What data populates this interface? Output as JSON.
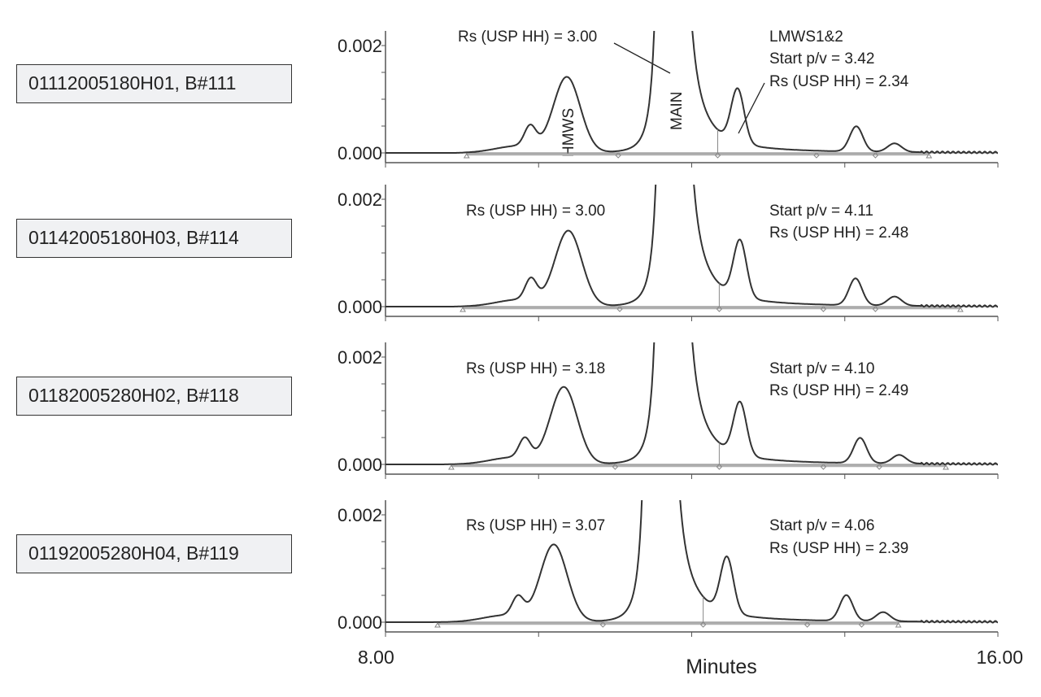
{
  "chart_data": [
    {
      "type": "line",
      "sample": "01112005180H01, B#111",
      "ylim": [
        0,
        0.0023
      ],
      "yticks": [
        "0.002",
        "0.000"
      ],
      "xlim": [
        8,
        16
      ],
      "peaks": [
        {
          "label": "",
          "rt": 9.89,
          "height": 0.00038
        },
        {
          "label": "HMWS",
          "rt": 10.37,
          "height": 0.0014
        },
        {
          "label": "MAIN",
          "rt": 11.76,
          "off_scale": true
        },
        {
          "label": "LMWS1",
          "rt": 12.6,
          "height": 0.001
        },
        {
          "label": "LMWS2",
          "rt": 14.15,
          "height": 0.00047
        },
        {
          "label": "",
          "rt": 14.65,
          "height": 0.00016
        }
      ],
      "markers": {
        "triangles": [
          9.06,
          15.1
        ],
        "diamonds": [
          11.04,
          12.34,
          13.63,
          14.4
        ]
      },
      "annotations": {
        "left": "Rs (USP HH) = 3.00",
        "right": [
          "LMWS1&2",
          "Start p/v = 3.42",
          "Rs (USP HH) = 2.34"
        ],
        "peak_labels": [
          "HMWS",
          "MAIN"
        ]
      }
    },
    {
      "type": "line",
      "sample": "01142005180H03, B#114",
      "ylim": [
        0,
        0.0023
      ],
      "yticks": [
        "0.002",
        "0.000"
      ],
      "xlim": [
        8,
        16
      ],
      "peaks": [
        {
          "label": "",
          "rt": 9.9,
          "height": 0.0004
        },
        {
          "label": "HMWS",
          "rt": 10.39,
          "height": 0.0014
        },
        {
          "label": "MAIN",
          "rt": 11.78,
          "off_scale": true
        },
        {
          "label": "LMWS1",
          "rt": 12.63,
          "height": 0.00105
        },
        {
          "label": "LMWS2",
          "rt": 14.14,
          "height": 0.0005
        },
        {
          "label": "",
          "rt": 14.65,
          "height": 0.00017
        }
      ],
      "markers": {
        "triangles": [
          9.01,
          15.51
        ],
        "diamonds": [
          11.06,
          12.36,
          13.72,
          14.4
        ]
      },
      "annotations": {
        "left": "Rs (USP HH) = 3.00",
        "right": [
          "Start p/v = 4.11",
          "Rs (USP HH) = 2.48"
        ]
      }
    },
    {
      "type": "line",
      "sample": "01182005280H02, B#118",
      "ylim": [
        0,
        0.0023
      ],
      "yticks": [
        "0.002",
        "0.000"
      ],
      "xlim": [
        8,
        16
      ],
      "peaks": [
        {
          "label": "",
          "rt": 9.82,
          "height": 0.00037
        },
        {
          "label": "HMWS",
          "rt": 10.33,
          "height": 0.00143
        },
        {
          "label": "MAIN",
          "rt": 11.76,
          "off_scale": true
        },
        {
          "label": "LMWS1",
          "rt": 12.63,
          "height": 0.00098
        },
        {
          "label": "LMWS2",
          "rt": 14.2,
          "height": 0.00047
        },
        {
          "label": "",
          "rt": 14.71,
          "height": 0.00016
        }
      ],
      "markers": {
        "triangles": [
          8.86,
          15.32
        ],
        "diamonds": [
          11.0,
          12.36,
          13.72,
          14.45
        ]
      },
      "annotations": {
        "left": "Rs (USP HH) = 3.18",
        "right": [
          "Start p/v = 4.10",
          "Rs (USP HH) = 2.49"
        ]
      }
    },
    {
      "type": "line",
      "sample": "01192005280H04, B#119",
      "ylim": [
        0,
        0.0023
      ],
      "yticks": [
        "0.002",
        "0.000"
      ],
      "xlim": [
        8,
        16
      ],
      "peaks": [
        {
          "label": "",
          "rt": 9.73,
          "height": 0.00035
        },
        {
          "label": "HMWS",
          "rt": 10.2,
          "height": 0.00143
        },
        {
          "label": "MAIN",
          "rt": 11.6,
          "off_scale": true
        },
        {
          "label": "LMWS1",
          "rt": 12.46,
          "height": 0.00103
        },
        {
          "label": "LMWS2",
          "rt": 14.02,
          "height": 0.00048
        },
        {
          "label": "",
          "rt": 14.5,
          "height": 0.00017
        }
      ],
      "markers": {
        "triangles": [
          8.68,
          14.7
        ],
        "diamonds": [
          10.84,
          12.15,
          13.51,
          14.22
        ]
      },
      "annotations": {
        "left": "Rs (USP HH) = 3.07",
        "right": [
          "Start p/v = 4.06",
          "Rs (USP HH) = 2.39"
        ]
      }
    }
  ],
  "x_axis": {
    "label": "Minutes",
    "min_label": "8.00",
    "max_label": "16.00"
  },
  "colors": {
    "trace": "#333333",
    "baseline": "#b0b0b0",
    "axis": "#555555",
    "box_fill": "#f0f1f3"
  }
}
